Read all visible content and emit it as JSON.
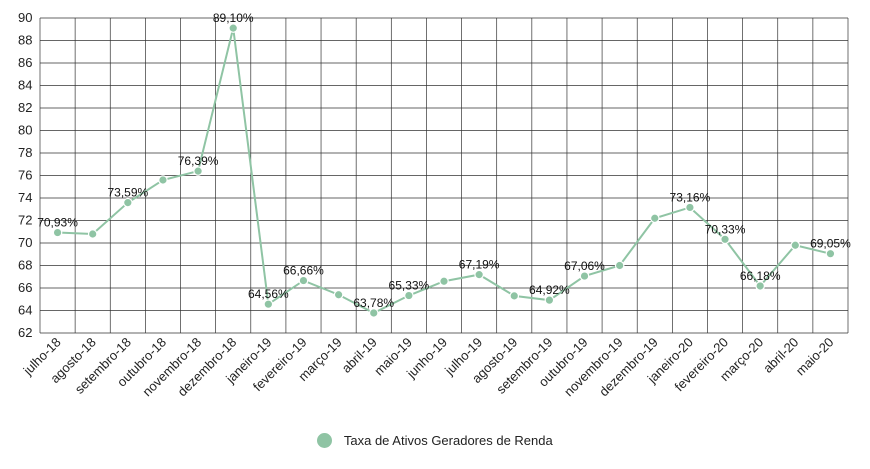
{
  "chart_data": {
    "type": "line",
    "categories": [
      "julho-18",
      "agosto-18",
      "setembro-18",
      "outubro-18",
      "novembro-18",
      "dezembro-18",
      "janeiro-19",
      "fevereiro-19",
      "março-19",
      "abril-19",
      "maio-19",
      "junho-19",
      "julho-19",
      "agosto-19",
      "setembro-19",
      "outubro-19",
      "novembro-19",
      "dezembro-19",
      "janeiro-20",
      "fevereiro-20",
      "março-20",
      "abril-20",
      "maio-20"
    ],
    "series": [
      {
        "name": "Taxa de Ativos Geradores de Renda",
        "values": [
          70.93,
          70.8,
          73.59,
          75.6,
          76.39,
          89.1,
          64.56,
          66.66,
          65.4,
          63.78,
          65.33,
          66.6,
          67.19,
          65.3,
          64.92,
          67.06,
          68.0,
          72.2,
          73.16,
          70.33,
          66.18,
          69.8,
          69.05
        ],
        "data_labels": [
          "70,93%",
          "",
          "73,59%",
          "",
          "76,39%",
          "89,10%",
          "64,56%",
          "66,66%",
          "",
          "63,78%",
          "65,33%",
          "",
          "67,19%",
          "",
          "64,92%",
          "67,06%",
          "",
          "",
          "73,16%",
          "70,33%",
          "66,18%",
          "",
          "69,05%"
        ],
        "color": "#8fc4a4"
      }
    ],
    "ylim": [
      62,
      90
    ],
    "yticks": [
      "62",
      "64",
      "66",
      "68",
      "70",
      "72",
      "74",
      "76",
      "78",
      "80",
      "82",
      "84",
      "86",
      "88",
      "90"
    ],
    "grid": true,
    "legend": "bottom-center",
    "title": "",
    "xlabel": "",
    "ylabel": ""
  }
}
